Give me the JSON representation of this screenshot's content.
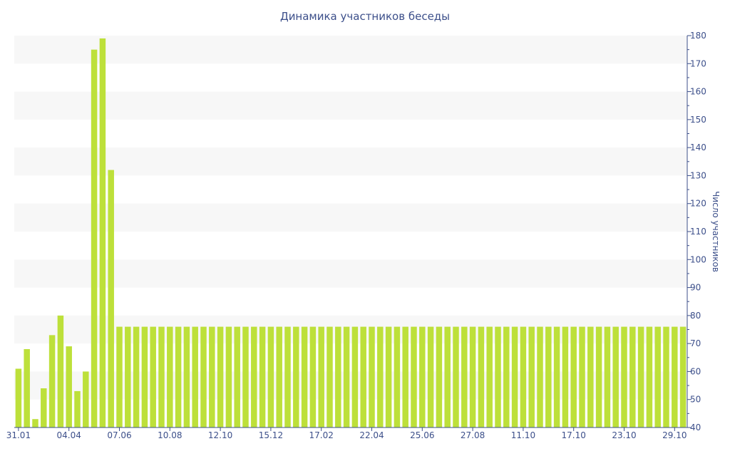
{
  "chart_data": {
    "type": "bar",
    "title": "Динамика участников беседы",
    "xlabel": "",
    "ylabel": "Число участников",
    "ylim": [
      40,
      180
    ],
    "y_ticks": [
      40,
      50,
      60,
      70,
      80,
      90,
      100,
      110,
      120,
      130,
      140,
      150,
      160,
      170,
      180
    ],
    "y_axis_position": "right",
    "x_tick_labels": [
      "31.01",
      "04.04",
      "07.06",
      "10.08",
      "12.10",
      "15.12",
      "17.02",
      "22.04",
      "25.06",
      "27.08",
      "11.10",
      "17.10",
      "23.10",
      "29.10"
    ],
    "x_tick_index": [
      0,
      6,
      12,
      18,
      24,
      30,
      36,
      42,
      48,
      54,
      60,
      66,
      72,
      78
    ],
    "bar_color": "#bde03a",
    "band_color": "#f7f7f7",
    "axis_color": "#3c4f8a",
    "values": [
      61,
      68,
      43,
      54,
      73,
      80,
      69,
      53,
      60,
      175,
      179,
      132,
      76,
      76,
      76,
      76,
      76,
      76,
      76,
      76,
      76,
      76,
      76,
      76,
      76,
      76,
      76,
      76,
      76,
      76,
      76,
      76,
      76,
      76,
      76,
      76,
      76,
      76,
      76,
      76,
      76,
      76,
      76,
      76,
      76,
      76,
      76,
      76,
      76,
      76,
      76,
      76,
      76,
      76,
      76,
      76,
      76,
      76,
      76,
      76,
      76,
      76,
      76,
      76,
      76,
      76,
      76,
      76,
      76,
      76,
      76,
      76,
      76,
      76,
      76,
      76,
      76,
      76,
      76,
      76
    ]
  }
}
